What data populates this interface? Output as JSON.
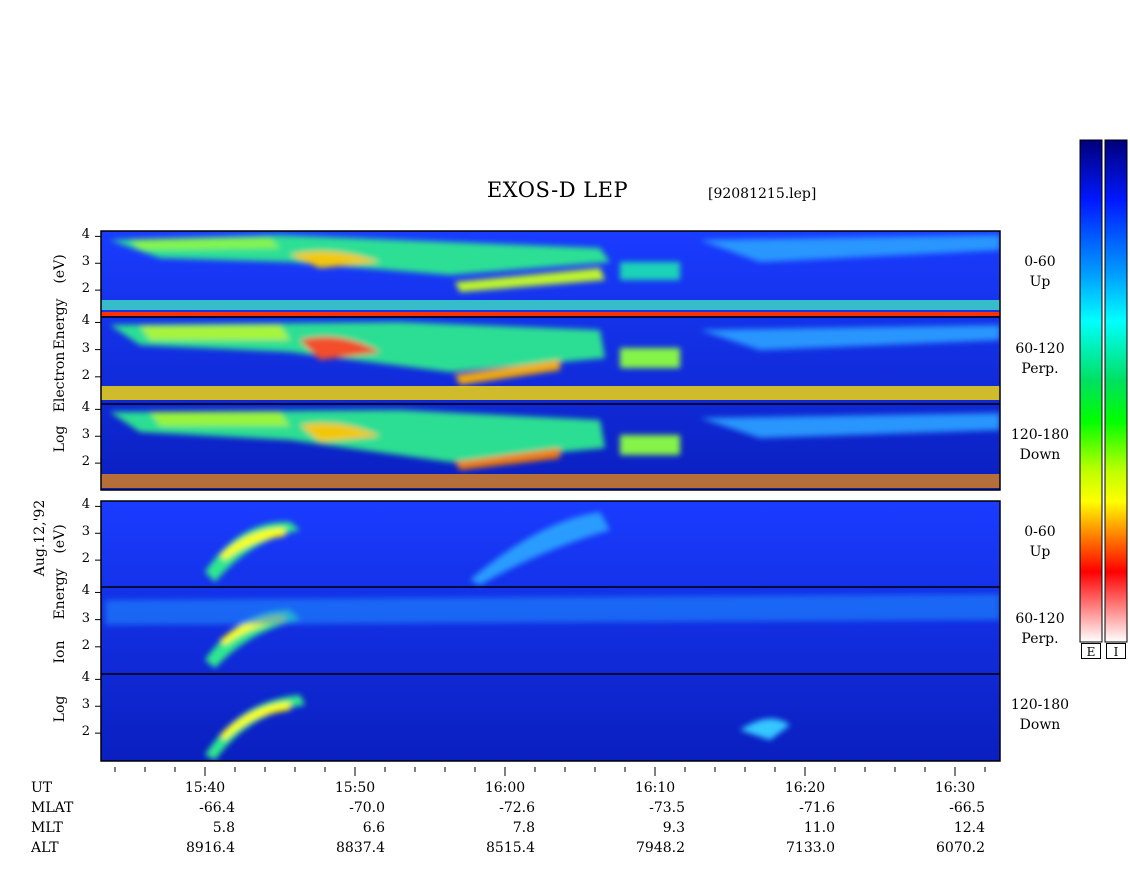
{
  "title": "EXOS-D LEP",
  "file": "[92081215.lep]",
  "date": "Aug.12,'92",
  "colors": {
    "noise": "#000000"
  },
  "chart_data": [
    {
      "type": "heatmap",
      "group": "Electron",
      "ylabel_parts": [
        "Log",
        "Electron",
        "Energy",
        "(eV)"
      ],
      "y_ticks": [
        "4",
        "3",
        "2"
      ],
      "ylim": [
        1,
        4.2
      ],
      "panels": [
        {
          "pitch": "0-60",
          "dir": "Up"
        },
        {
          "pitch": "60-120",
          "dir": "Perp."
        },
        {
          "pitch": "120-180",
          "dir": "Down"
        }
      ]
    },
    {
      "type": "heatmap",
      "group": "Ion",
      "ylabel_parts": [
        "Log",
        "Ion",
        "Energy",
        "(eV)"
      ],
      "y_ticks": [
        "4",
        "3",
        "2"
      ],
      "ylim": [
        1,
        4.2
      ],
      "panels": [
        {
          "pitch": "0-60",
          "dir": "Up"
        },
        {
          "pitch": "60-120",
          "dir": "Perp."
        },
        {
          "pitch": "120-180",
          "dir": "Down"
        }
      ]
    }
  ],
  "x_axis": {
    "major": [
      "15:40",
      "15:50",
      "16:00",
      "16:10",
      "16:20",
      "16:30"
    ],
    "row_labels": [
      "UT",
      "MLAT",
      "MLT",
      "ALT"
    ],
    "MLAT": [
      "-66.4",
      "-70.0",
      "-72.6",
      "-73.5",
      "-71.6",
      "-66.5"
    ],
    "MLT": [
      "5.8",
      "6.6",
      "7.8",
      "9.3",
      "11.0",
      "12.4"
    ],
    "ALT": [
      "8916.4",
      "8837.4",
      "8515.4",
      "7948.2",
      "7133.0",
      "6070.2"
    ]
  },
  "colorbar": {
    "labels": [
      "E",
      "I"
    ]
  }
}
